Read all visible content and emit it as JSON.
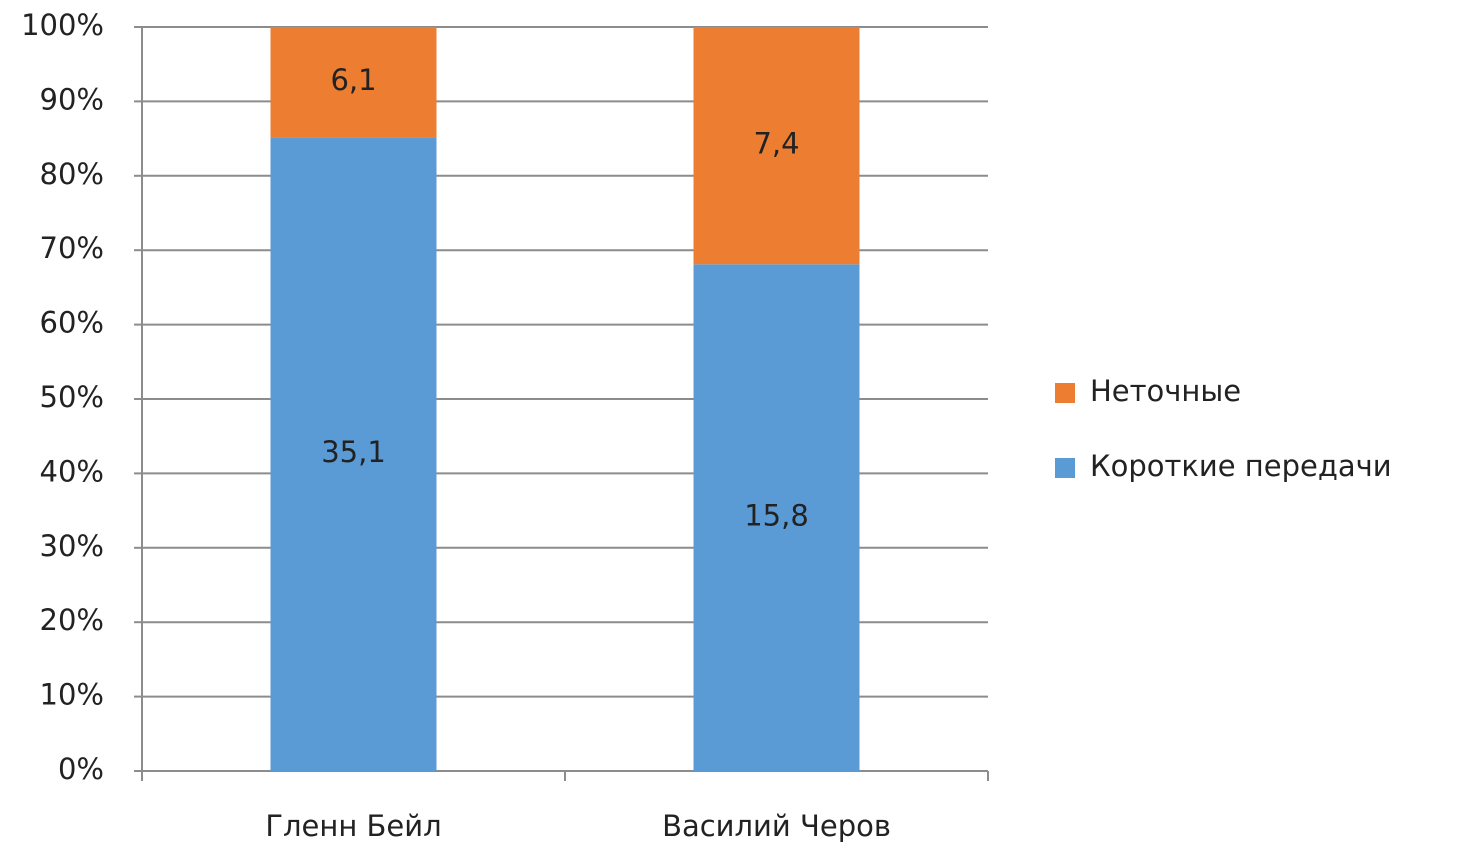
{
  "chart_data": {
    "type": "bar",
    "stacking": "percent",
    "categories": [
      "Гленн Бейл",
      "Василий Черов"
    ],
    "series": [
      {
        "name": "Короткие передачи",
        "color": "#5b9bd5",
        "values": [
          35.1,
          15.8
        ],
        "value_labels": [
          "35,1",
          "15,8"
        ]
      },
      {
        "name": "Неточные",
        "color": "#ed7d31",
        "values": [
          6.1,
          7.4
        ],
        "value_labels": [
          "6,1",
          "7,4"
        ]
      }
    ],
    "ylim": [
      0,
      100
    ],
    "yticks": [
      {
        "value": 0,
        "label": "0%"
      },
      {
        "value": 10,
        "label": "10%"
      },
      {
        "value": 20,
        "label": "20%"
      },
      {
        "value": 30,
        "label": "30%"
      },
      {
        "value": 40,
        "label": "40%"
      },
      {
        "value": 50,
        "label": "50%"
      },
      {
        "value": 60,
        "label": "60%"
      },
      {
        "value": 70,
        "label": "70%"
      },
      {
        "value": 80,
        "label": "80%"
      },
      {
        "value": 90,
        "label": "90%"
      },
      {
        "value": 100,
        "label": "100%"
      }
    ],
    "grid": true,
    "legend": "right"
  }
}
